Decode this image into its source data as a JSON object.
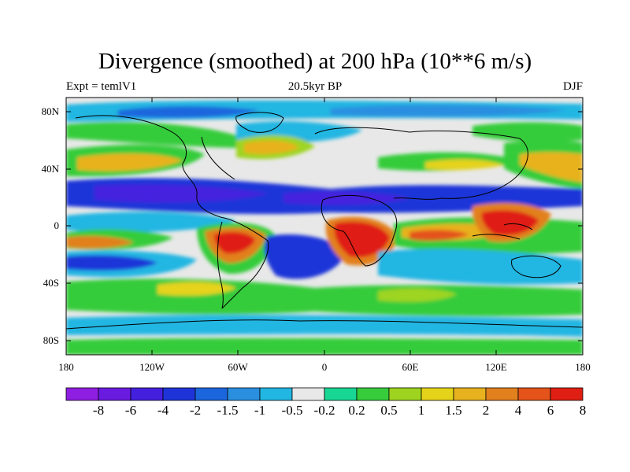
{
  "title": "Divergence (smoothed) at 200 hPa (10**6 m/s)",
  "subtitle_left": "Expt = temlV1",
  "subtitle_center": "20.5kyr BP",
  "subtitle_right": "DJF",
  "lat_labels": [
    "80N",
    "40N",
    "0",
    "40S",
    "80S"
  ],
  "lon_labels": [
    "180",
    "120W",
    "60W",
    "0",
    "60E",
    "120E",
    "180"
  ],
  "colorbar": {
    "labels": [
      "-8",
      "-6",
      "-4",
      "-2",
      "-1.5",
      "-1",
      "-0.5",
      "-0.2",
      "0.2",
      "0.5",
      "1",
      "1.5",
      "2",
      "4",
      "6",
      "8"
    ],
    "colors": [
      "#8f1ee3",
      "#6a1be0",
      "#4420de",
      "#1f34d8",
      "#1c66dd",
      "#2b8fe0",
      "#22b6e2",
      "#e8e8e8",
      "#18d694",
      "#36cc3b",
      "#9ed420",
      "#e5d31a",
      "#e8b21f",
      "#e2801e",
      "#e4531a",
      "#df1f13"
    ]
  }
}
